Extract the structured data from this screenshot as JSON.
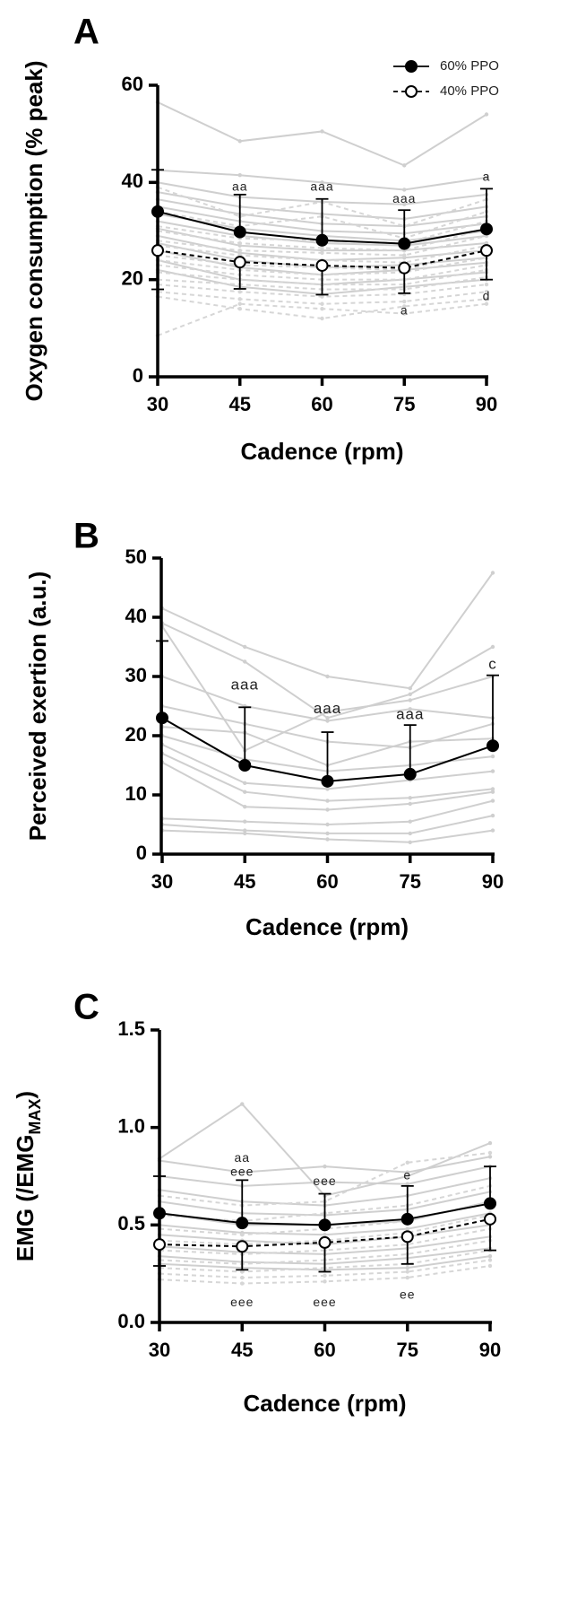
{
  "chart_data": [
    {
      "panel": "A",
      "type": "line",
      "x": [
        30,
        45,
        60,
        75,
        90
      ],
      "xlabel": "Cadence (rpm)",
      "ylabel": "Oxygen consumption (% peak)",
      "xticks": [
        "30",
        "45",
        "60",
        "75",
        "90"
      ],
      "yticks": [
        "0",
        "20",
        "40",
        "60"
      ],
      "ylim": [
        0,
        60
      ],
      "legend": {
        "position": "top-right",
        "entries": [
          "60% PPO",
          "40% PPO"
        ]
      },
      "series": [
        {
          "name": "60% PPO",
          "marker": "filled-circle",
          "line": "solid",
          "color": "#000000",
          "values": [
            34.0,
            29.8,
            28.1,
            27.4,
            30.4
          ],
          "sd": [
            8.6,
            7.7,
            8.5,
            6.9,
            8.3
          ]
        },
        {
          "name": "40% PPO",
          "marker": "open-circle",
          "line": "dashed",
          "color": "#000000",
          "values": [
            26.0,
            23.6,
            22.9,
            22.4,
            26.0
          ],
          "sd": [
            8.0,
            5.5,
            6.0,
            5.2,
            6.0
          ]
        }
      ],
      "individual_solid": [
        [
          56.5,
          48.5,
          50.5,
          43.5,
          54.0
        ],
        [
          42.5,
          41.5,
          40.0,
          38.5,
          41.0
        ],
        [
          40.0,
          37.0,
          36.0,
          35.5,
          37.5
        ],
        [
          38.0,
          35.0,
          33.5,
          32.5,
          35.0
        ],
        [
          36.5,
          33.5,
          31.5,
          31.0,
          33.0
        ],
        [
          35.0,
          32.0,
          30.0,
          29.5,
          31.5
        ],
        [
          33.5,
          30.5,
          29.0,
          28.0,
          30.0
        ],
        [
          32.0,
          29.0,
          27.5,
          27.0,
          29.0
        ],
        [
          30.5,
          27.0,
          26.0,
          26.0,
          27.5
        ],
        [
          29.0,
          25.5,
          24.0,
          24.5,
          26.0
        ],
        [
          27.5,
          24.0,
          22.5,
          23.0,
          24.5
        ],
        [
          26.0,
          22.5,
          21.0,
          22.0,
          23.5
        ],
        [
          24.0,
          20.0,
          19.0,
          20.0,
          21.5
        ],
        [
          22.0,
          18.5,
          17.0,
          18.5,
          20.0
        ]
      ],
      "individual_dashed": [
        [
          39.0,
          33.0,
          36.0,
          31.0,
          36.5
        ],
        [
          34.0,
          31.0,
          33.0,
          28.5,
          34.0
        ],
        [
          31.0,
          28.5,
          28.0,
          27.5,
          32.0
        ],
        [
          30.0,
          27.5,
          26.5,
          26.0,
          30.5
        ],
        [
          28.0,
          26.0,
          25.5,
          25.0,
          29.0
        ],
        [
          27.0,
          25.0,
          24.0,
          23.5,
          27.0
        ],
        [
          25.0,
          23.0,
          22.5,
          22.0,
          26.0
        ],
        [
          24.0,
          22.0,
          21.0,
          21.5,
          24.5
        ],
        [
          23.0,
          21.0,
          20.0,
          20.0,
          23.0
        ],
        [
          21.5,
          20.0,
          19.0,
          19.0,
          22.0
        ],
        [
          20.0,
          19.0,
          18.0,
          18.0,
          20.5
        ],
        [
          19.0,
          17.5,
          16.5,
          17.0,
          19.0
        ],
        [
          17.5,
          16.0,
          15.0,
          15.5,
          17.5
        ],
        [
          16.5,
          14.0,
          12.0,
          14.5,
          16.0
        ],
        [
          8.5,
          15.0,
          14.0,
          13.0,
          15.0
        ]
      ],
      "annotations": [
        {
          "x": 45,
          "y": 39.0,
          "text": "aa"
        },
        {
          "x": 60,
          "y": 39.0,
          "text": "aaa"
        },
        {
          "x": 75,
          "y": 36.5,
          "text": "aaa"
        },
        {
          "x": 90,
          "y": 41.0,
          "text": "a"
        },
        {
          "x": 75,
          "y": 13.5,
          "text": "a"
        },
        {
          "x": 90,
          "y": 16.5,
          "text": "d"
        }
      ]
    },
    {
      "panel": "B",
      "type": "line",
      "x": [
        30,
        45,
        60,
        75,
        90
      ],
      "xlabel": "Cadence (rpm)",
      "ylabel": "Perceived exertion (a.u.)",
      "xticks": [
        "30",
        "45",
        "60",
        "75",
        "90"
      ],
      "yticks": [
        "0",
        "10",
        "20",
        "30",
        "40",
        "50"
      ],
      "ylim": [
        0,
        50
      ],
      "series": [
        {
          "marker": "filled-circle",
          "line": "solid",
          "color": "#000000",
          "values": [
            23.0,
            15.0,
            12.3,
            13.5,
            18.3
          ],
          "sd": [
            13.0,
            9.8,
            8.3,
            8.3,
            11.9
          ]
        }
      ],
      "individual_solid": [
        [
          41.5,
          35.0,
          30.0,
          28.0,
          47.5
        ],
        [
          39.0,
          32.5,
          23.0,
          27.0,
          35.0
        ],
        [
          38.5,
          17.5,
          24.0,
          26.0,
          30.0
        ],
        [
          30.0,
          25.0,
          22.5,
          24.5,
          23.0
        ],
        [
          25.0,
          22.0,
          19.0,
          18.0,
          22.0
        ],
        [
          21.5,
          20.5,
          15.0,
          19.0,
          19.5
        ],
        [
          20.0,
          16.0,
          14.0,
          15.0,
          16.5
        ],
        [
          18.5,
          12.0,
          11.0,
          12.5,
          14.0
        ],
        [
          17.0,
          10.5,
          9.0,
          9.5,
          11.0
        ],
        [
          15.5,
          8.0,
          7.5,
          8.5,
          10.5
        ],
        [
          6.0,
          5.5,
          5.0,
          5.5,
          9.0
        ],
        [
          5.0,
          4.0,
          3.5,
          3.5,
          6.5
        ],
        [
          4.0,
          3.5,
          2.5,
          2.0,
          4.0
        ]
      ],
      "annotations": [
        {
          "x": 45,
          "y": 28.5,
          "text": "aaa"
        },
        {
          "x": 60,
          "y": 24.5,
          "text": "aaa"
        },
        {
          "x": 75,
          "y": 23.5,
          "text": "aaa"
        },
        {
          "x": 90,
          "y": 32.0,
          "text": "c"
        }
      ]
    },
    {
      "panel": "C",
      "type": "line",
      "x": [
        30,
        45,
        60,
        75,
        90
      ],
      "xlabel": "Cadence (rpm)",
      "ylabel": "EMG (/EMG",
      "ylabel_sub": "MAX",
      "ylabel_close": ")",
      "xticks": [
        "30",
        "45",
        "60",
        "75",
        "90"
      ],
      "yticks": [
        "0.0",
        "0.5",
        "1.0",
        "1.5"
      ],
      "ylim": [
        0,
        1.5
      ],
      "series": [
        {
          "name": "60% PPO",
          "marker": "filled-circle",
          "line": "solid",
          "color": "#000000",
          "values": [
            0.56,
            0.51,
            0.5,
            0.53,
            0.61
          ],
          "sd": [
            0.19,
            0.22,
            0.16,
            0.17,
            0.19
          ]
        },
        {
          "name": "40% PPO",
          "marker": "open-circle",
          "line": "dashed",
          "color": "#000000",
          "values": [
            0.4,
            0.39,
            0.41,
            0.44,
            0.53
          ],
          "sd": [
            0.11,
            0.12,
            0.15,
            0.14,
            0.16
          ]
        }
      ],
      "individual_solid": [
        [
          0.84,
          1.12,
          0.65,
          0.75,
          0.92
        ],
        [
          0.83,
          0.77,
          0.8,
          0.77,
          0.85
        ],
        [
          0.75,
          0.7,
          0.72,
          0.71,
          0.8
        ],
        [
          0.68,
          0.62,
          0.6,
          0.65,
          0.74
        ],
        [
          0.62,
          0.56,
          0.55,
          0.58,
          0.67
        ],
        [
          0.56,
          0.5,
          0.5,
          0.52,
          0.62
        ],
        [
          0.5,
          0.46,
          0.45,
          0.48,
          0.56
        ],
        [
          0.45,
          0.42,
          0.4,
          0.44,
          0.5
        ],
        [
          0.39,
          0.36,
          0.35,
          0.38,
          0.44
        ],
        [
          0.34,
          0.31,
          0.3,
          0.33,
          0.38
        ],
        [
          0.3,
          0.28,
          0.27,
          0.28,
          0.34
        ]
      ],
      "individual_dashed": [
        [
          0.65,
          0.6,
          0.62,
          0.82,
          0.87
        ],
        [
          0.55,
          0.52,
          0.56,
          0.6,
          0.7
        ],
        [
          0.48,
          0.45,
          0.48,
          0.52,
          0.62
        ],
        [
          0.42,
          0.4,
          0.42,
          0.46,
          0.55
        ],
        [
          0.37,
          0.35,
          0.37,
          0.4,
          0.48
        ],
        [
          0.32,
          0.3,
          0.32,
          0.35,
          0.42
        ],
        [
          0.28,
          0.26,
          0.28,
          0.3,
          0.37
        ],
        [
          0.25,
          0.23,
          0.24,
          0.26,
          0.32
        ],
        [
          0.22,
          0.2,
          0.21,
          0.23,
          0.29
        ]
      ],
      "annotations": [
        {
          "x": 45,
          "y": 0.84,
          "text": "aa"
        },
        {
          "x": 45,
          "y": 0.77,
          "text": "eee"
        },
        {
          "x": 60,
          "y": 0.72,
          "text": "eee"
        },
        {
          "x": 75,
          "y": 0.75,
          "text": "e"
        },
        {
          "x": 45,
          "y": 0.1,
          "text": "eee"
        },
        {
          "x": 60,
          "y": 0.1,
          "text": "eee"
        },
        {
          "x": 75,
          "y": 0.14,
          "text": "ee"
        }
      ]
    }
  ]
}
